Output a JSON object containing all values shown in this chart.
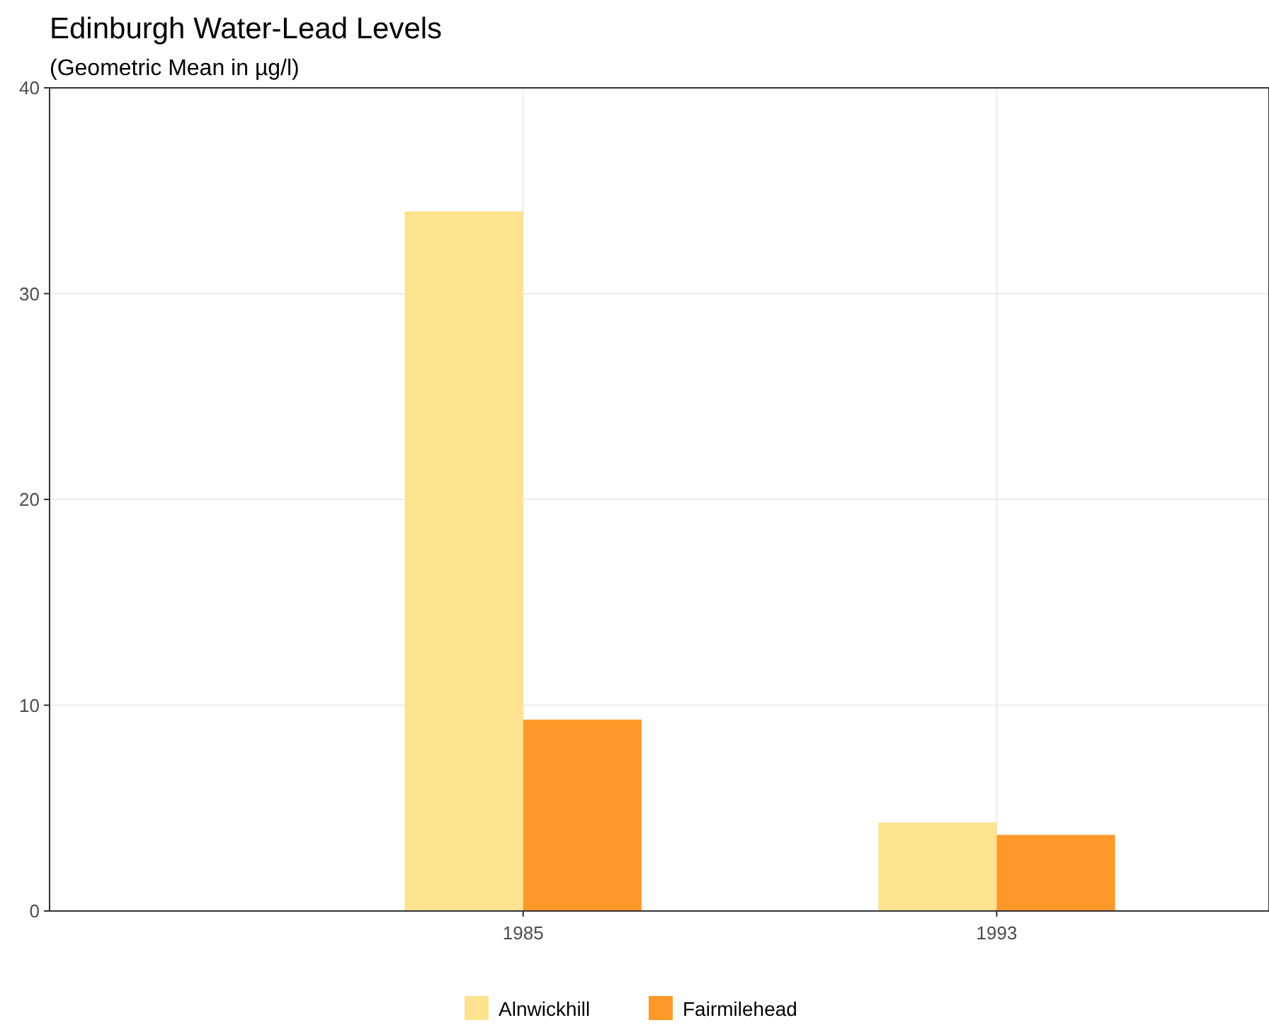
{
  "chart_data": {
    "type": "bar",
    "title": "Edinburgh Water-Lead Levels",
    "subtitle": "(Geometric Mean in µg/l)",
    "x": [
      1985,
      1993
    ],
    "xlim": [
      1977,
      1997.6
    ],
    "xticks": [
      1985,
      1993
    ],
    "ylim": [
      0,
      40
    ],
    "yticks": [
      0,
      10,
      20,
      30,
      40
    ],
    "grid": true,
    "legend": "bottom",
    "series": [
      {
        "name": "Alnwickhill",
        "color": "#fde28f",
        "values": [
          34,
          4.3
        ]
      },
      {
        "name": "Fairmilehead",
        "color": "#fe9929",
        "values": [
          9.3,
          3.7
        ]
      }
    ]
  }
}
